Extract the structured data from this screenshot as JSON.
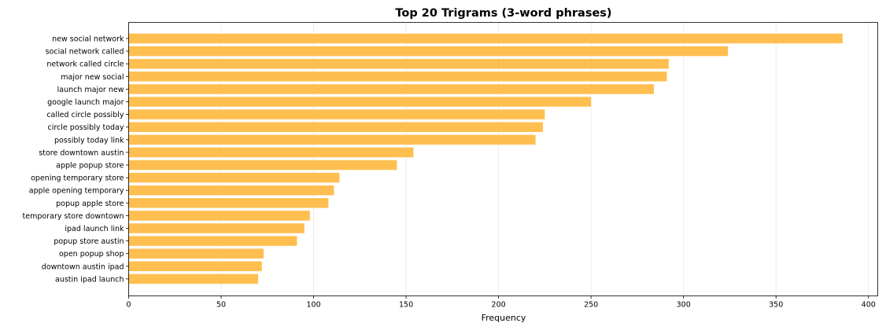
{
  "chart_data": {
    "type": "bar",
    "orientation": "horizontal",
    "title": "Top 20 Trigrams (3-word phrases)",
    "xlabel": "Frequency",
    "ylabel": "",
    "xlim": [
      0,
      405
    ],
    "xticks": [
      0,
      50,
      100,
      150,
      200,
      250,
      300,
      350,
      400
    ],
    "grid": "x-axis vertical lines",
    "bar_color": "#ffbf50",
    "categories": [
      "new social network",
      "social network called",
      "network called circle",
      "major new social",
      "launch major new",
      "google launch major",
      "called circle possibly",
      "circle possibly today",
      "possibly today link",
      "store downtown austin",
      "apple popup store",
      "opening temporary store",
      "apple opening temporary",
      "popup apple store",
      "temporary store downtown",
      "ipad launch link",
      "popup store austin",
      "open popup shop",
      "downtown austin ipad",
      "austin ipad launch"
    ],
    "values": [
      386,
      324,
      292,
      291,
      284,
      250,
      225,
      224,
      220,
      154,
      145,
      114,
      111,
      108,
      98,
      95,
      91,
      73,
      72,
      70
    ]
  }
}
